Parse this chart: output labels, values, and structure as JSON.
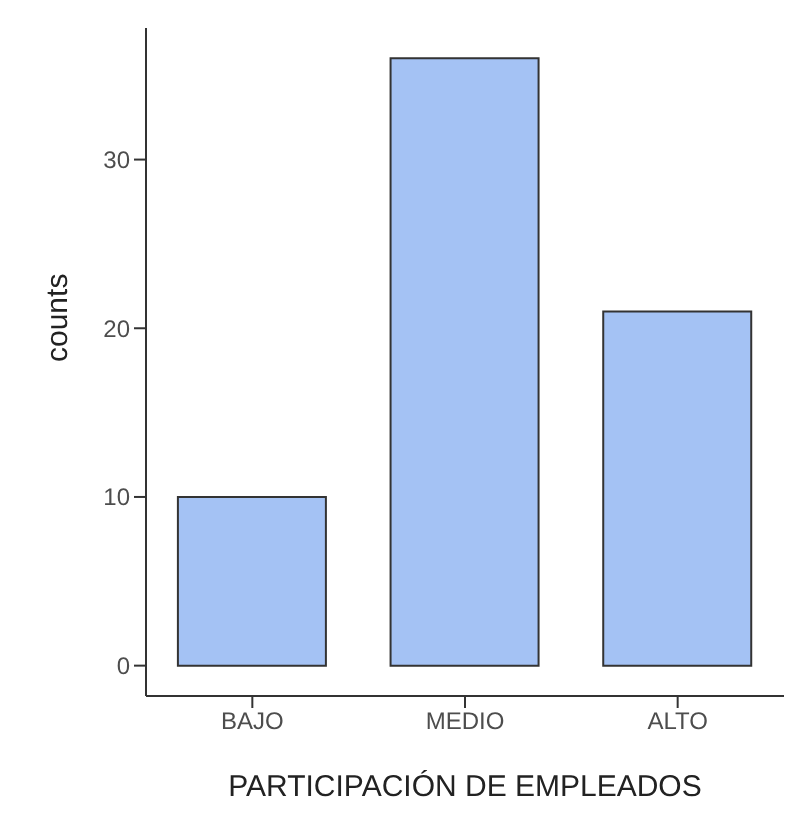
{
  "chart_data": {
    "type": "bar",
    "xlabel": "PARTICIPACIÓN DE EMPLEADOS",
    "ylabel": "counts",
    "categories": [
      "BAJO",
      "MEDIO",
      "ALTO"
    ],
    "values": [
      10,
      36,
      21
    ],
    "color": "#a4c2f4",
    "ylim": [
      -1.8,
      37.8
    ],
    "yticks": [
      0,
      10,
      20,
      30
    ],
    "grid": false
  }
}
